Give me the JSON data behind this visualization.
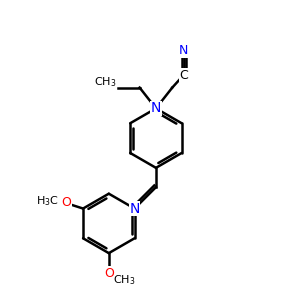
{
  "bg": "#ffffff",
  "bond_color": "#000000",
  "N_color": "#0000ff",
  "O_color": "#ff0000",
  "lw": 1.8,
  "figsize": [
    3.0,
    3.0
  ],
  "dpi": 100,
  "xlim": [
    0,
    10
  ],
  "ylim": [
    0,
    10
  ]
}
